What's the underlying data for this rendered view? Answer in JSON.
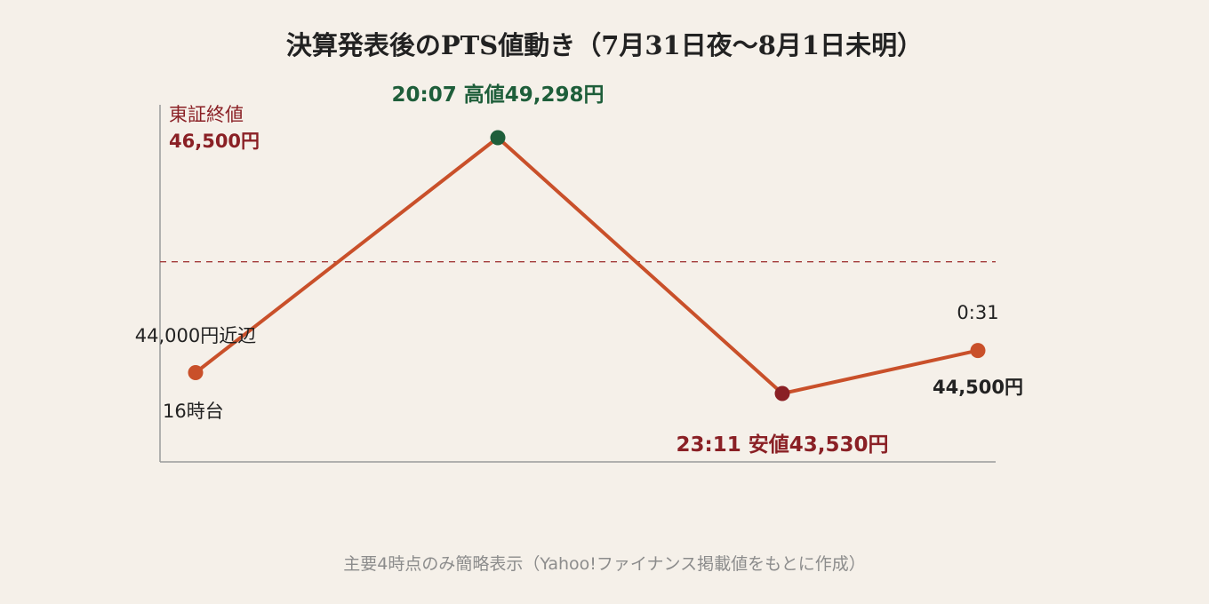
{
  "title": "決算発表後のPTS値動き（7月31日夜〜8月1日未明）",
  "footnote": "主要4時点のみ簡略表示（Yahoo!ファイナンス掲載値をもとに作成）",
  "colors": {
    "line": "#c9502a",
    "high": "#1e5e3a",
    "low": "#8a2025",
    "reference": "#a33a3a",
    "axis": "#9a9a9a",
    "text": "#222222"
  },
  "chart_data": {
    "type": "line",
    "unit": "円",
    "reference_line": {
      "label": "東証終値",
      "value": 46500,
      "value_label": "46,500円"
    },
    "points": [
      {
        "time": "16時台",
        "value": 44000,
        "label_top": "44,000円近辺",
        "label_bottom": "16時台",
        "role": "start"
      },
      {
        "time": "20:07",
        "value": 49298,
        "label": "20:07 高値49,298円",
        "role": "high"
      },
      {
        "time": "23:11",
        "value": 43530,
        "label": "23:11 安値43,530円",
        "role": "low"
      },
      {
        "time": "0:31",
        "value": 44500,
        "label_top": "0:31",
        "label_bottom": "44,500円",
        "role": "end"
      }
    ]
  }
}
